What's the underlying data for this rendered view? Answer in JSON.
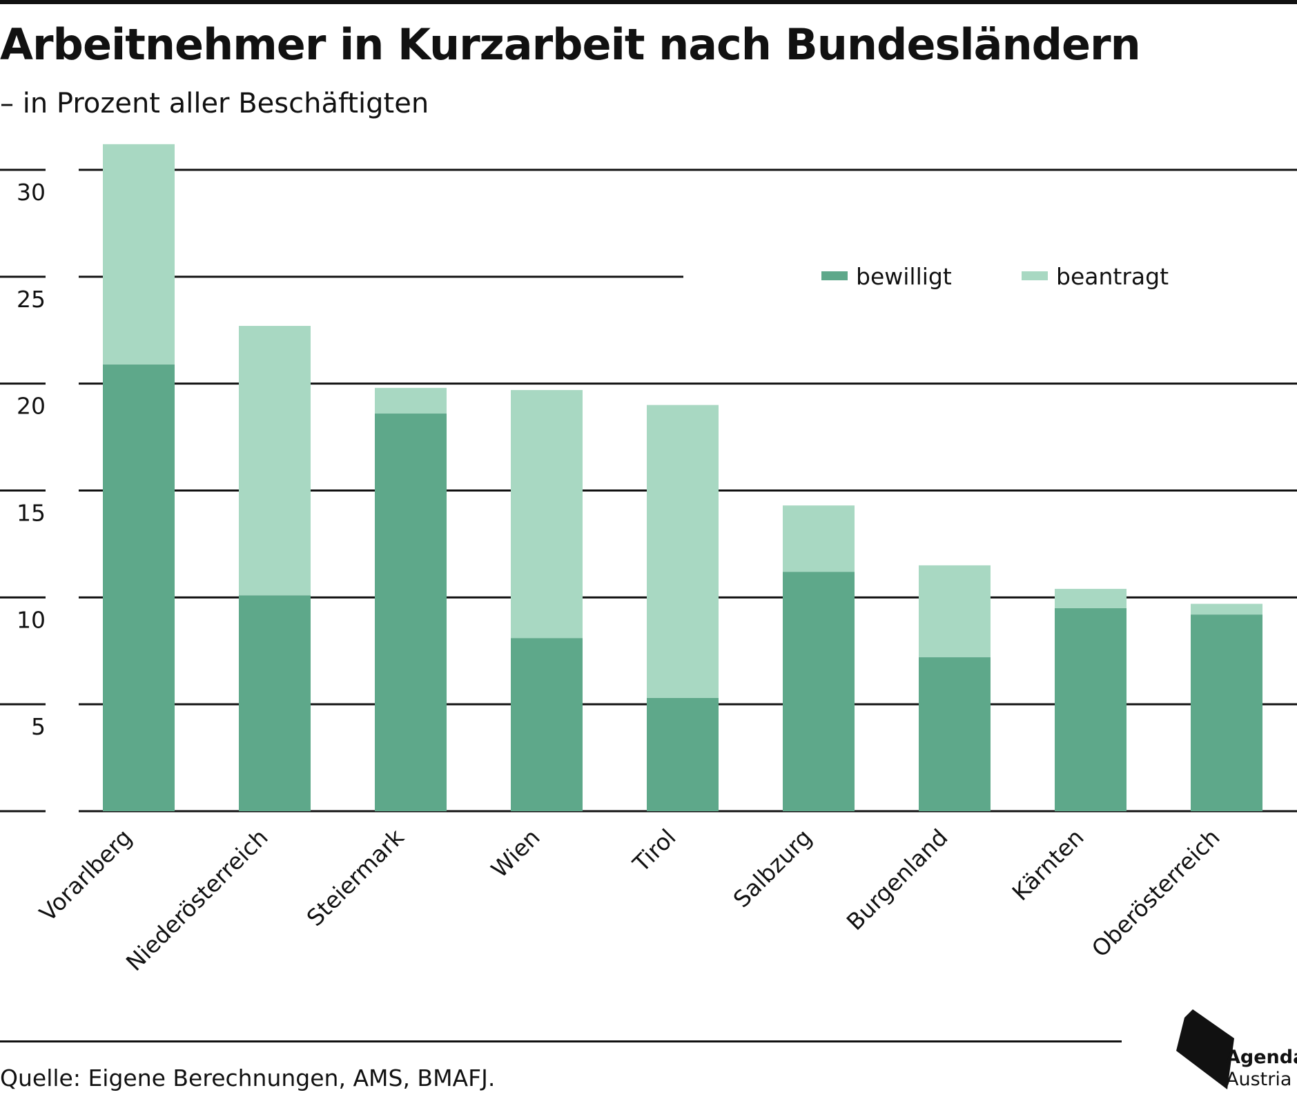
{
  "header": {
    "title": "Arbeitnehmer in Kurzarbeit nach Bundesländern",
    "subtitle": "– in Prozent aller Beschäftigten"
  },
  "footer": {
    "source": "Quelle: Eigene Berechnungen, AMS, BMAFJ.",
    "logo_line1": "Agenda",
    "logo_line2": "Austria"
  },
  "chart_data": {
    "type": "bar",
    "stacked": true,
    "title": "Arbeitnehmer in Kurzarbeit nach Bundesländern",
    "subtitle": "– in Prozent aller Beschäftigten",
    "xlabel": "",
    "ylabel": "",
    "ylim": [
      0,
      30
    ],
    "yticks": [
      5,
      10,
      15,
      20,
      25,
      30
    ],
    "grid": true,
    "legend_position": "top-right",
    "categories": [
      "Vorarlberg",
      "Niederösterreich",
      "Steiermark",
      "Wien",
      "Tirol",
      "Salbzurg",
      "Burgenland",
      "Kärnten",
      "Oberösterreich"
    ],
    "series": [
      {
        "name": "bewilligt",
        "color": "#5ea88a",
        "values": [
          20.9,
          10.1,
          18.6,
          8.1,
          5.3,
          11.2,
          7.2,
          9.5,
          9.2
        ]
      },
      {
        "name": "beantragt",
        "color": "#a8d8c2",
        "values": [
          10.3,
          12.6,
          1.2,
          11.6,
          13.7,
          3.1,
          4.3,
          0.9,
          0.5
        ]
      }
    ],
    "stack_totals": [
      31.2,
      22.7,
      19.8,
      19.7,
      19.0,
      14.3,
      11.5,
      10.4,
      9.7
    ]
  }
}
